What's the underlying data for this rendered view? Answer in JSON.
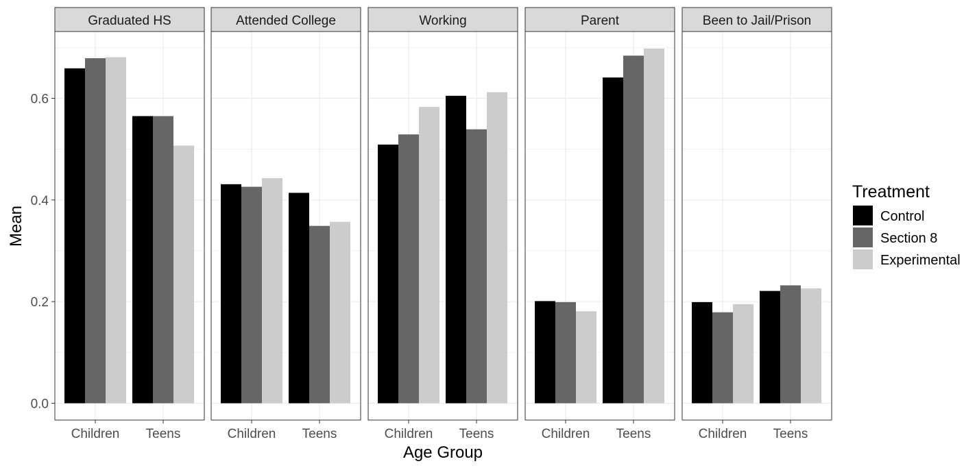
{
  "chart_data": {
    "type": "bar",
    "xlabel": "Age Group",
    "ylabel": "Mean",
    "ylim": [
      -0.033,
      0.73
    ],
    "yticks": [
      "0.0",
      "0.2",
      "0.4",
      "0.6"
    ],
    "ytick_values": [
      0.0,
      0.2,
      0.4,
      0.6
    ],
    "categories": [
      "Children",
      "Teens"
    ],
    "grid": true,
    "legend": {
      "title": "Treatment",
      "position": "right",
      "entries": [
        {
          "name": "Control",
          "color": "#000000"
        },
        {
          "name": "Section 8",
          "color": "#666666"
        },
        {
          "name": "Experimental",
          "color": "#cccccc"
        }
      ]
    },
    "facets": [
      {
        "title": "Graduated HS",
        "series": [
          {
            "name": "Control",
            "values": [
              0.659,
              0.565
            ]
          },
          {
            "name": "Section 8",
            "values": [
              0.679,
              0.565
            ]
          },
          {
            "name": "Experimental",
            "values": [
              0.681,
              0.507
            ]
          }
        ]
      },
      {
        "title": "Attended College",
        "series": [
          {
            "name": "Control",
            "values": [
              0.431,
              0.414
            ]
          },
          {
            "name": "Section 8",
            "values": [
              0.426,
              0.349
            ]
          },
          {
            "name": "Experimental",
            "values": [
              0.443,
              0.357
            ]
          }
        ]
      },
      {
        "title": "Working",
        "series": [
          {
            "name": "Control",
            "values": [
              0.509,
              0.605
            ]
          },
          {
            "name": "Section 8",
            "values": [
              0.529,
              0.539
            ]
          },
          {
            "name": "Experimental",
            "values": [
              0.583,
              0.612
            ]
          }
        ]
      },
      {
        "title": "Parent",
        "series": [
          {
            "name": "Control",
            "values": [
              0.201,
              0.641
            ]
          },
          {
            "name": "Section 8",
            "values": [
              0.199,
              0.684
            ]
          },
          {
            "name": "Experimental",
            "values": [
              0.181,
              0.698
            ]
          }
        ]
      },
      {
        "title": "Been to Jail/Prison",
        "series": [
          {
            "name": "Control",
            "values": [
              0.199,
              0.221
            ]
          },
          {
            "name": "Section 8",
            "values": [
              0.179,
              0.232
            ]
          },
          {
            "name": "Experimental",
            "values": [
              0.195,
              0.226
            ]
          }
        ]
      }
    ]
  }
}
